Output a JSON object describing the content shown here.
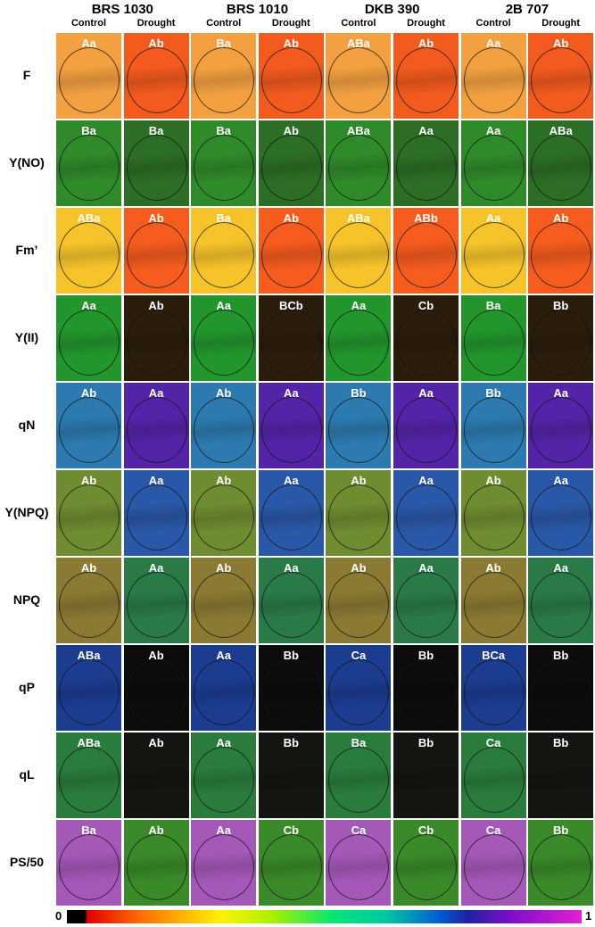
{
  "columns": [
    {
      "genotype": "BRS 1030",
      "treatments": [
        "Control",
        "Drought"
      ]
    },
    {
      "genotype": "BRS 1010",
      "treatments": [
        "Control",
        "Drought"
      ]
    },
    {
      "genotype": "DKB 390",
      "treatments": [
        "Control",
        "Drought"
      ]
    },
    {
      "genotype": "2B 707",
      "treatments": [
        "Control",
        "Drought"
      ]
    }
  ],
  "rows": [
    {
      "label": "F",
      "letters": [
        "Aa",
        "Ab",
        "Ba",
        "Ab",
        "ABa",
        "Ab",
        "Aa",
        "Ab"
      ]
    },
    {
      "label": "Y(NO)",
      "letters": [
        "Ba",
        "Ba",
        "Ba",
        "Ab",
        "ABa",
        "Aa",
        "Aa",
        "ABa"
      ]
    },
    {
      "label": "Fm’",
      "letters": [
        "ABa",
        "Ab",
        "Ba",
        "Ab",
        "ABa",
        "ABb",
        "Aa",
        "Ab"
      ]
    },
    {
      "label": "Y(II)",
      "letters": [
        "Aa",
        "Ab",
        "Aa",
        "BCb",
        "Aa",
        "Cb",
        "Ba",
        "Bb"
      ]
    },
    {
      "label": "qN",
      "letters": [
        "Ab",
        "Aa",
        "Ab",
        "Aa",
        "Bb",
        "Aa",
        "Bb",
        "Aa"
      ]
    },
    {
      "label": "Y(NPQ)",
      "letters": [
        "Ab",
        "Aa",
        "Ab",
        "Aa",
        "Ab",
        "Aa",
        "Ab",
        "Aa"
      ]
    },
    {
      "label": "NPQ",
      "letters": [
        "Ab",
        "Aa",
        "Ab",
        "Aa",
        "Ab",
        "Aa",
        "Ab",
        "Aa"
      ]
    },
    {
      "label": "qP",
      "letters": [
        "ABa",
        "Ab",
        "Aa",
        "Bb",
        "Ca",
        "Bb",
        "BCa",
        "Bb"
      ]
    },
    {
      "label": "qL",
      "letters": [
        "ABa",
        "Ab",
        "Aa",
        "Bb",
        "Ba",
        "Bb",
        "Ca",
        "Bb"
      ]
    },
    {
      "label": "PS/50",
      "letters": [
        "Ba",
        "Ab",
        "Aa",
        "Cb",
        "Ca",
        "Cb",
        "Ca",
        "Bb"
      ]
    }
  ],
  "colorbar": {
    "min": 0,
    "max": 1
  }
}
